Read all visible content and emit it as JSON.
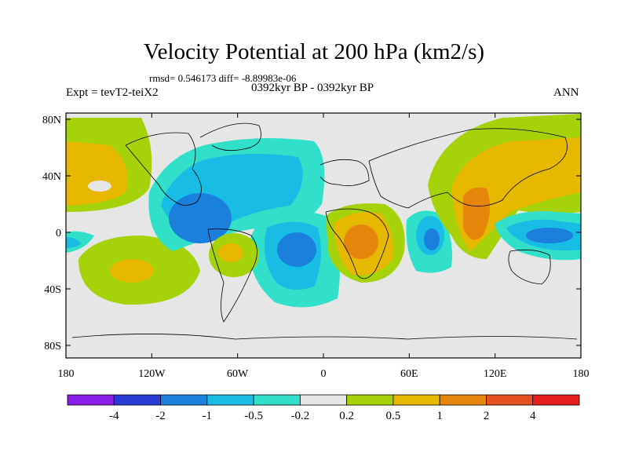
{
  "title": "Velocity Potential at 200 hPa (km2/s)",
  "stats": "rmsd= 0.546173 diff= -8.89983e-06",
  "left_label": "Expt = tevT2-teiX2",
  "center_label": "0392kyr BP - 0392kyr BP",
  "right_label": "ANN",
  "lat_ticks": [
    "80N",
    "40N",
    "0",
    "40S",
    "80S"
  ],
  "lon_ticks": [
    "180",
    "120W",
    "60W",
    "0",
    "60E",
    "120E",
    "180"
  ],
  "colorbar": {
    "colors": [
      "#8a1ee6",
      "#2a3ad6",
      "#1a80dc",
      "#18bde6",
      "#30e0c8",
      "#e6e6e6",
      "#a6d20a",
      "#e6b800",
      "#e6860a",
      "#e6501e",
      "#e61e1e"
    ],
    "labels": [
      "-4",
      "-2",
      "-1",
      "-0.5",
      "-0.2",
      "0.2",
      "0.5",
      "1",
      "2",
      "4"
    ]
  }
}
